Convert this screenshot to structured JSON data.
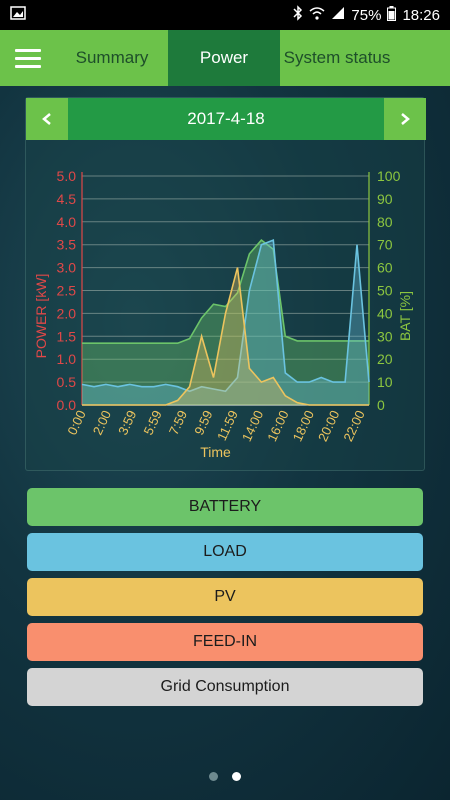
{
  "status_bar": {
    "battery": "75%",
    "time": "18:26"
  },
  "tabs": [
    {
      "label": "Summary"
    },
    {
      "label": "Power"
    },
    {
      "label": "System status"
    }
  ],
  "date_nav": {
    "date": "2017-4-18",
    "prev_icon": "chevron-left-icon",
    "next_icon": "chevron-right-icon"
  },
  "legend_buttons": [
    {
      "label": "BATTERY",
      "color": "#6cc46a"
    },
    {
      "label": "LOAD",
      "color": "#6ac3e0"
    },
    {
      "label": "PV",
      "color": "#ecc45e"
    },
    {
      "label": "FEED-IN",
      "color": "#f98f6e"
    },
    {
      "label": "Grid Consumption",
      "color": "#d4d4d4"
    }
  ],
  "page_indicator": {
    "count": 2,
    "active": 2
  },
  "chart_data": {
    "type": "area",
    "xlabel": "Time",
    "ylabel_left": "POWER [kW]",
    "ylabel_right": "BAT [%]",
    "ylim_left": [
      0,
      5
    ],
    "ylim_right": [
      0,
      100
    ],
    "yticks_left": [
      "0.0",
      "0.5",
      "1.0",
      "1.5",
      "2.0",
      "2.5",
      "3.0",
      "3.5",
      "4.0",
      "4.5",
      "5.0"
    ],
    "yticks_right": [
      "0",
      "10",
      "20",
      "30",
      "40",
      "50",
      "60",
      "70",
      "80",
      "90",
      "100"
    ],
    "xticks": [
      "0:00",
      "2:00",
      "3:59",
      "5:59",
      "7:59",
      "9:59",
      "11:59",
      "14:00",
      "16:00",
      "18:00",
      "20:00",
      "22:00"
    ],
    "grid": true,
    "colors": {
      "battery": "#6cc46a",
      "load": "#6ac3e0",
      "pv": "#ecc45e",
      "left_axis": "#e04848",
      "right_axis": "#8cc63f"
    },
    "series": [
      {
        "name": "BATTERY",
        "axis": "right",
        "x": [
          0,
          1,
          2,
          3,
          4,
          5,
          6,
          7,
          8,
          9,
          10,
          11,
          12,
          13,
          14,
          15,
          16,
          17,
          18,
          19,
          20,
          21,
          22,
          23,
          24
        ],
        "values": [
          27,
          27,
          27,
          27,
          27,
          27,
          27,
          27,
          27,
          29,
          38,
          44,
          43,
          49,
          66,
          72,
          68,
          30,
          28,
          28,
          28,
          28,
          28,
          28,
          28
        ]
      },
      {
        "name": "LOAD",
        "axis": "left",
        "x": [
          0,
          1,
          2,
          3,
          4,
          5,
          6,
          7,
          8,
          9,
          10,
          11,
          12,
          13,
          14,
          15,
          16,
          17,
          18,
          19,
          20,
          21,
          22,
          23,
          24
        ],
        "values": [
          0.45,
          0.4,
          0.45,
          0.4,
          0.45,
          0.4,
          0.4,
          0.45,
          0.4,
          0.3,
          0.4,
          0.35,
          0.3,
          0.6,
          2.5,
          3.5,
          3.6,
          0.7,
          0.5,
          0.5,
          0.6,
          0.5,
          0.5,
          3.5,
          0.5
        ]
      },
      {
        "name": "PV",
        "axis": "left",
        "x": [
          0,
          1,
          2,
          3,
          4,
          5,
          6,
          7,
          8,
          9,
          10,
          11,
          12,
          13,
          14,
          15,
          16,
          17,
          18,
          19,
          20,
          21,
          22,
          23,
          24
        ],
        "values": [
          0,
          0,
          0,
          0,
          0,
          0,
          0,
          0,
          0.1,
          0.4,
          1.5,
          0.6,
          2.0,
          3.0,
          0.8,
          0.5,
          0.6,
          0.2,
          0.05,
          0,
          0,
          0,
          0,
          0,
          0
        ]
      }
    ]
  }
}
